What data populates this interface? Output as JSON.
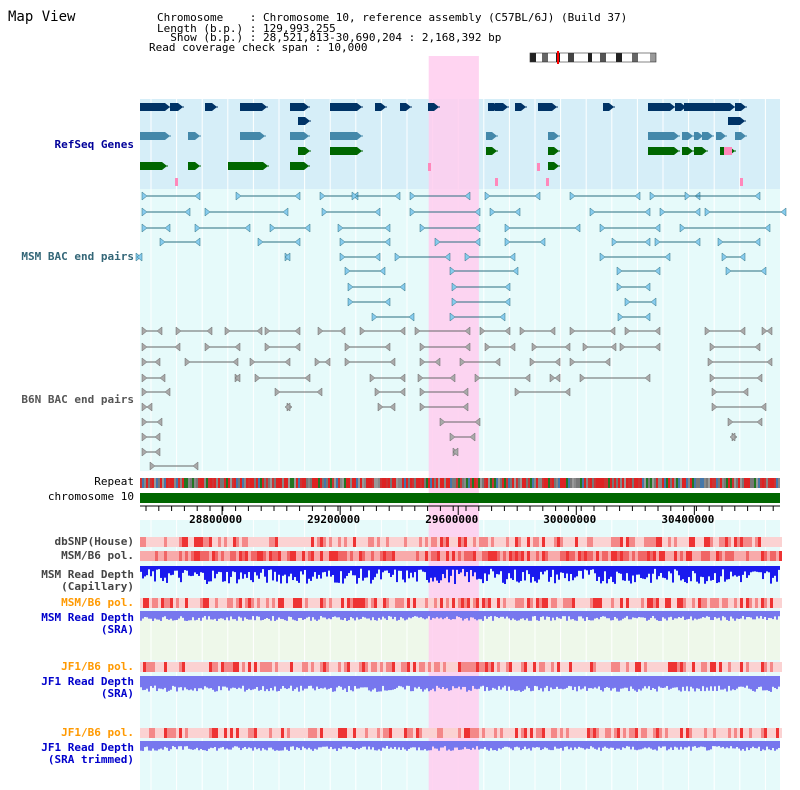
{
  "title": "Map View",
  "info": {
    "chromosome_line": "Chromosome    : Chromosome 10, reference assembly (C57BL/6J) (Build 37)",
    "length_line": "Length (b.p.) : 129,993,255",
    "show_line": "  Show (b.p.) : 28,521,813-30,690,204 : 2,168,392 bp",
    "coverage_line": "Read coverage check span : 10,000"
  },
  "tracks": {
    "refseq": {
      "label": "RefSeq Genes",
      "color": "#000099"
    },
    "msm_bac": {
      "label": "MSM BAC end pairs",
      "color": "#336677"
    },
    "b6n_bac": {
      "label": "B6N BAC end pairs",
      "color": "#555555"
    },
    "repeat": {
      "label": "Repeat"
    },
    "chromosome": {
      "label": "chromosome 10"
    },
    "dbsnp": {
      "label": "dbSNP(House)"
    },
    "msm_b6_pol": {
      "label": "MSM/B6 pol."
    },
    "msm_read_depth_cap": {
      "label": "MSM Read Depth\n(Capillary)"
    },
    "msm_b6_pol2": {
      "label": "MSM/B6 pol.",
      "color": "#ff9900"
    },
    "msm_read_depth_sra": {
      "label": "MSM Read Depth\n(SRA)",
      "color": "#0000cc"
    },
    "jf1_b6_pol": {
      "label": "JF1/B6 pol.",
      "color": "#ff9900"
    },
    "jf1_read_depth_sra": {
      "label": "JF1 Read Depth\n(SRA)",
      "color": "#0000cc"
    },
    "jf1_b6_pol2": {
      "label": "JF1/B6 pol.",
      "color": "#ff9900"
    },
    "jf1_read_depth_trim": {
      "label": "JF1 Read Depth\n(SRA trimmed)",
      "color": "#0000cc"
    }
  },
  "axis": {
    "range_bp": [
      28521813,
      30690204
    ],
    "ticks": [
      "28800000",
      "29200000",
      "29600000",
      "30000000",
      "30400000"
    ],
    "tick_values": [
      28800000,
      29200000,
      29600000,
      30000000,
      30400000
    ],
    "highlight_bp": [
      29500000,
      29670000
    ]
  },
  "colors": {
    "highlight": "#ffccee",
    "refseq_bg": "#d6eef8",
    "bac_bg": "#e6fafa",
    "chromosome_bar": "#006600",
    "depth_blue": "#1a1aee",
    "sra_blue": "#7777ee"
  }
}
